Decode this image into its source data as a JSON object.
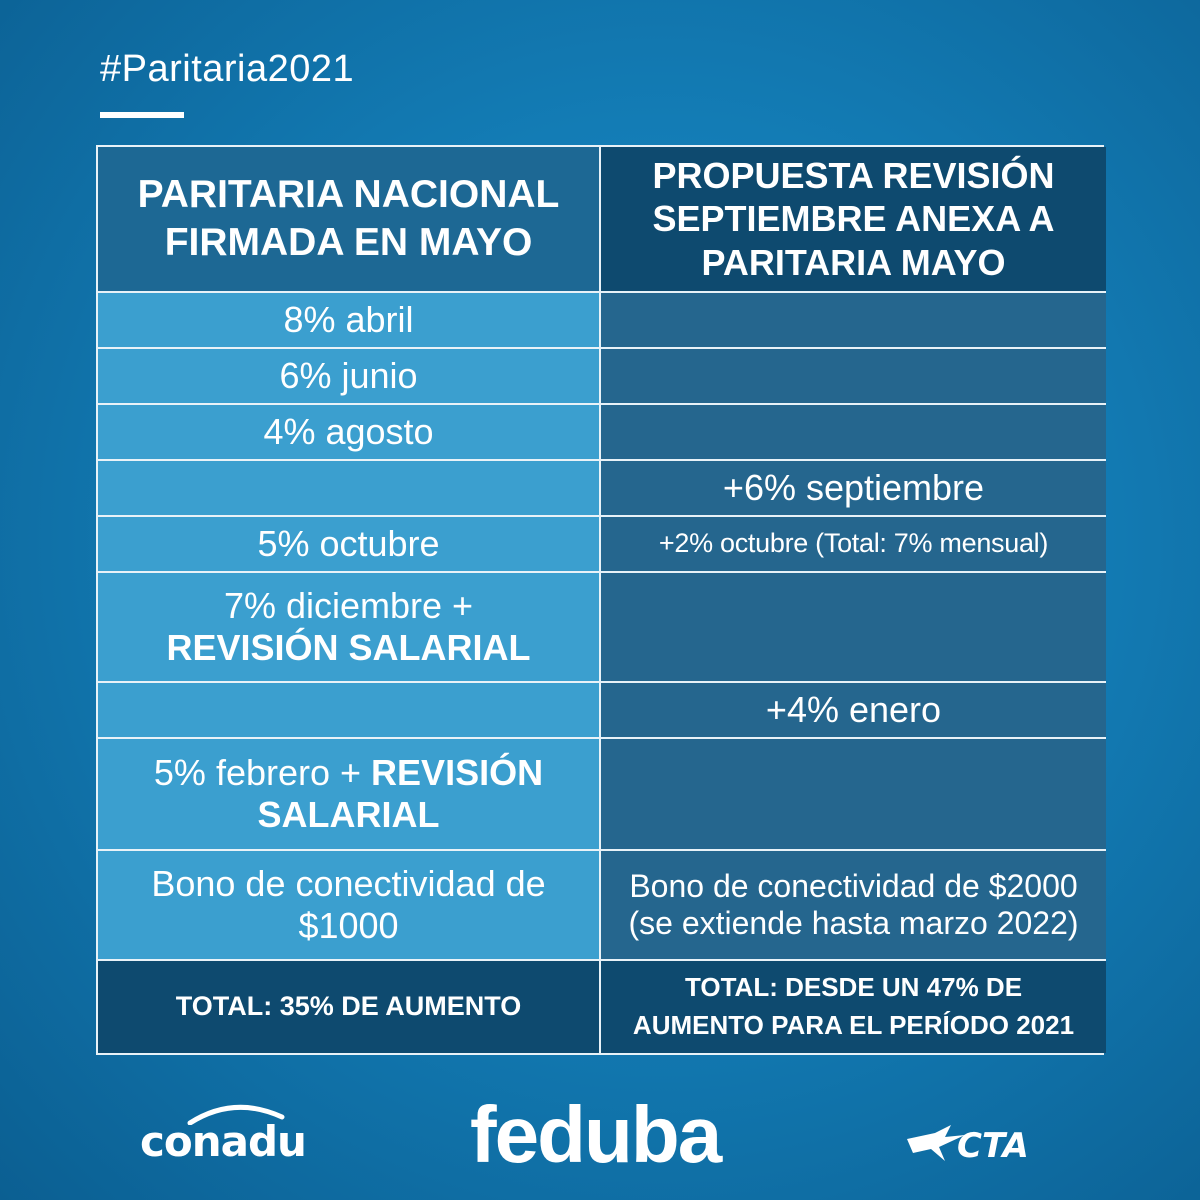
{
  "hashtag": "#Paritaria2021",
  "table": {
    "header_left": "PARITARIA NACIONAL FIRMADA EN MAYO",
    "header_right": "PROPUESTA REVISIÓN SEPTIEMBRE ANEXA A PARITARIA MAYO",
    "rows": [
      {
        "left": "8% abril",
        "right": ""
      },
      {
        "left": "6% junio",
        "right": ""
      },
      {
        "left": "4% agosto",
        "right": ""
      },
      {
        "left": "",
        "right": "+6% septiembre"
      },
      {
        "left": "5% octubre",
        "right": "+2% octubre (Total: 7% mensual)"
      },
      {
        "left": "7% diciembre +",
        "left_bold": "REVISIÓN SALARIAL",
        "right": ""
      },
      {
        "left": "",
        "right": "+4% enero"
      },
      {
        "left": "5% febrero +",
        "left_bold": "REVISIÓN SALARIAL",
        "right": ""
      },
      {
        "left": "Bono de conectividad de $1000",
        "right": "Bono de conectividad de $2000 (se extiende hasta marzo 2022)"
      }
    ],
    "total_left": "TOTAL: 35% DE AUMENTO",
    "total_right": "TOTAL: DESDE UN 47% DE AUMENTO PARA EL PERÍODO 2021"
  },
  "logos": {
    "conadu": "conadu",
    "feduba": "feduba",
    "cta": "CTA"
  },
  "colors": {
    "background": "#137cb5",
    "cell_light": "#3b9fcf",
    "cell_dark": "#25668e",
    "header_dark": "#0e4a6f"
  }
}
